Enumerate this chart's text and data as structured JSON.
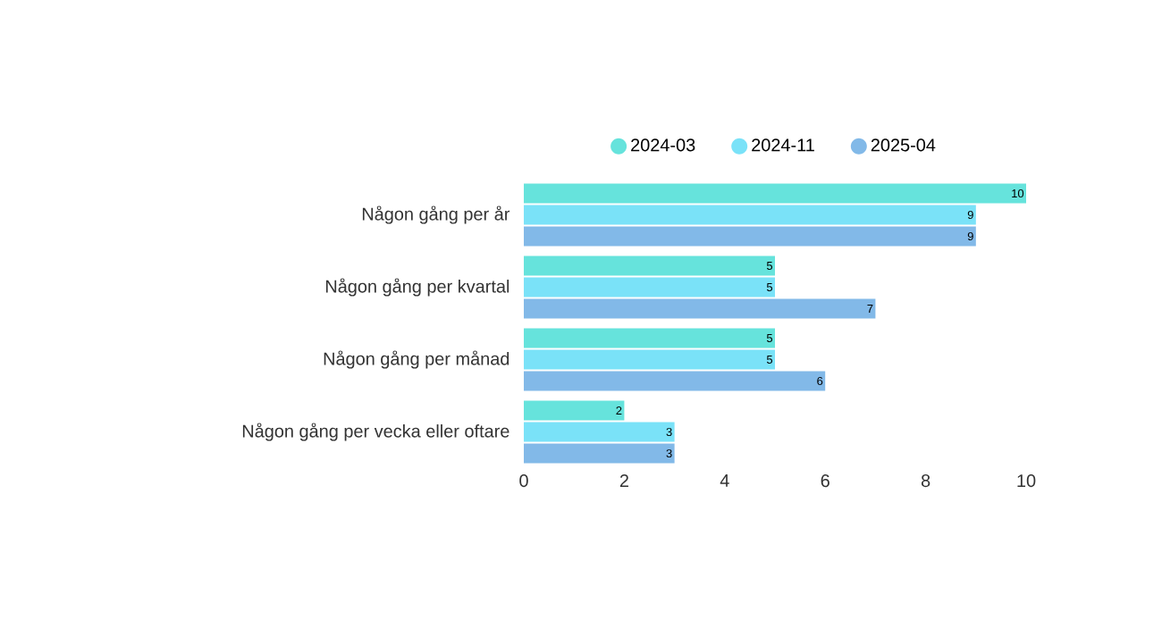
{
  "chart_data": {
    "type": "bar",
    "orientation": "horizontal",
    "categories": [
      "Någon gång per år",
      "Någon gång per kvartal",
      "Någon gång per månad",
      "Någon gång per vecka eller oftare"
    ],
    "series": [
      {
        "name": "2024-03",
        "color": "#66e3dc",
        "values": [
          10,
          5,
          5,
          2
        ]
      },
      {
        "name": "2024-11",
        "color": "#7ae2f8",
        "values": [
          9,
          5,
          5,
          3
        ]
      },
      {
        "name": "2025-04",
        "color": "#82b9e8",
        "values": [
          9,
          7,
          6,
          3
        ]
      }
    ],
    "xlim": [
      0,
      10
    ],
    "xticks": [
      0,
      2,
      4,
      6,
      8,
      10
    ],
    "data_labels": true,
    "legend": "top"
  }
}
